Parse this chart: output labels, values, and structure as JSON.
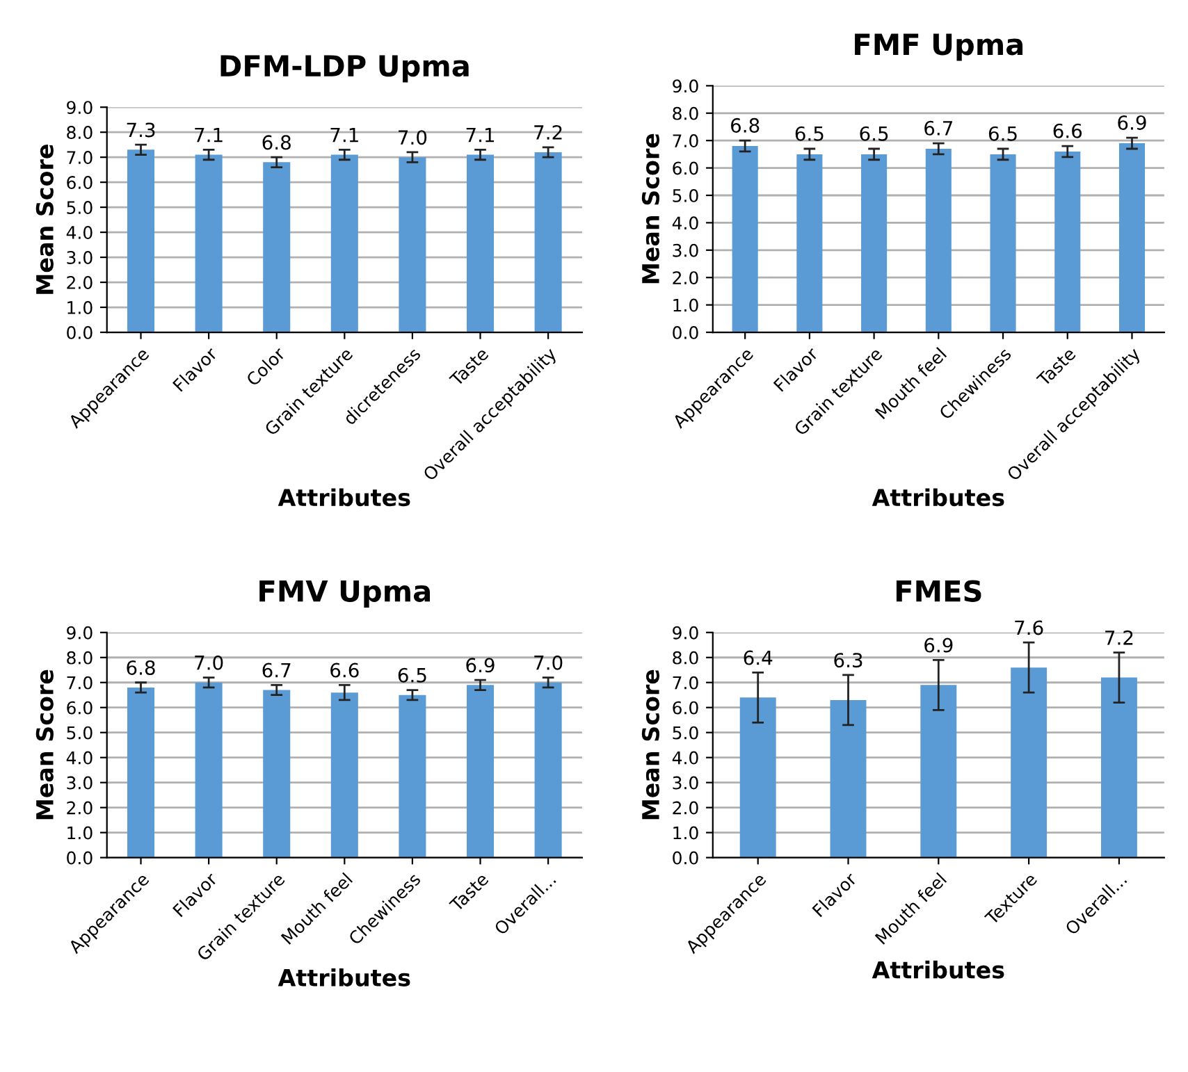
{
  "chart_data": [
    {
      "type": "bar",
      "title": "DFM-LDP Upma",
      "xlabel": "Attributes",
      "ylabel": "Mean Score",
      "categories": [
        "Appearance",
        "Flavor",
        "Color",
        "Grain texture",
        "dicreteness",
        "Taste",
        "Overall acceptability"
      ],
      "values": [
        7.3,
        7.1,
        6.8,
        7.1,
        7.0,
        7.1,
        7.2
      ],
      "errors": [
        0.2,
        0.2,
        0.2,
        0.2,
        0.2,
        0.2,
        0.2
      ],
      "color": "#5b9bd5",
      "value_labels": [
        "7.3",
        "7.1",
        "6.8",
        "7.1",
        "7.0",
        "7.1",
        "7.2"
      ],
      "ylim": [
        0,
        9
      ],
      "yticks": [
        {
          "value": 0,
          "label": "0.0"
        },
        {
          "value": 1,
          "label": "1.0"
        },
        {
          "value": 2,
          "label": "2.0"
        },
        {
          "value": 3,
          "label": "3.0"
        },
        {
          "value": 4,
          "label": "4.0"
        },
        {
          "value": 5,
          "label": "5.0"
        },
        {
          "value": 6,
          "label": "6.0"
        },
        {
          "value": 7,
          "label": "7.0"
        },
        {
          "value": 8,
          "label": "8.0"
        },
        {
          "value": 9,
          "label": "9.0"
        }
      ],
      "grid": "y"
    },
    {
      "type": "bar",
      "title": "FMF Upma",
      "xlabel": "Attributes",
      "ylabel": "Mean Score",
      "categories": [
        "Appearance",
        "Flavor",
        "Grain texture",
        "Mouth feel",
        "Chewiness",
        "Taste",
        "Overall acceptability"
      ],
      "values": [
        6.8,
        6.5,
        6.5,
        6.7,
        6.5,
        6.6,
        6.9
      ],
      "errors": [
        0.2,
        0.2,
        0.2,
        0.2,
        0.2,
        0.2,
        0.2
      ],
      "color": "#5b9bd5",
      "data_labels": true,
      "ylim": [
        0,
        9
      ],
      "yticks": [
        {
          "value": 0,
          "label": "0.0"
        },
        {
          "value": 1,
          "label": "1.0"
        },
        {
          "value": 2,
          "label": "2.0"
        },
        {
          "value": 3,
          "label": "3.0"
        },
        {
          "value": 4,
          "label": "4.0"
        },
        {
          "value": 5,
          "label": "5.0"
        },
        {
          "value": 6,
          "label": "6.0"
        },
        {
          "value": 7,
          "label": "7.0"
        },
        {
          "value": 8,
          "label": "8.0"
        },
        {
          "value": 9,
          "label": "9.0"
        }
      ],
      "grid": "y"
    },
    {
      "type": "bar",
      "title": "FMV Upma",
      "xlabel": "Attributes",
      "ylabel": "Mean Score",
      "categories": [
        "Appearance",
        "Flavor",
        "Grain texture",
        "Mouth feel",
        "Chewiness",
        "Taste",
        "Overall..."
      ],
      "values": [
        6.8,
        7.0,
        6.7,
        6.6,
        6.5,
        6.9,
        7.0
      ],
      "errors": [
        0.2,
        0.2,
        0.2,
        0.3,
        0.2,
        0.2,
        0.2
      ],
      "color": "#5b9bd5",
      "value_labels": [
        "6.8",
        "7.0",
        "6.7",
        "6.6",
        "6.5",
        "6.9",
        "7.0"
      ],
      "ylim": [
        0,
        9
      ],
      "yticks": [
        {
          "value": 0,
          "label": "0.0"
        },
        {
          "value": 1,
          "label": "1.0"
        },
        {
          "value": 2,
          "label": "2.0"
        },
        {
          "value": 3,
          "label": "3.0"
        },
        {
          "value": 4,
          "label": "4.0"
        },
        {
          "value": 5,
          "label": "5.0"
        },
        {
          "value": 6,
          "label": "6.0"
        },
        {
          "value": 7,
          "label": "7.0"
        },
        {
          "value": 8,
          "label": "8.0"
        },
        {
          "value": 9,
          "label": "9.0"
        }
      ],
      "grid": "y"
    },
    {
      "type": "bar",
      "title": "FMES",
      "xlabel": "Attributes",
      "ylabel": "Mean Score",
      "categories": [
        "Appearance",
        "Flavor",
        "Mouth feel",
        "Texture",
        "Overall..."
      ],
      "values": [
        6.4,
        6.3,
        6.9,
        7.6,
        7.2
      ],
      "errors": [
        1.0,
        1.0,
        1.0,
        1.0,
        1.0
      ],
      "color": "#5b9bd5",
      "data_labels": true,
      "ylim": [
        0,
        9
      ],
      "yticks": [
        {
          "value": 0,
          "label": "0.0"
        },
        {
          "value": 1,
          "label": "1.0"
        },
        {
          "value": 2,
          "label": "2.0"
        },
        {
          "value": 3,
          "label": "3.0"
        },
        {
          "value": 4,
          "label": "4.0"
        },
        {
          "value": 5,
          "label": "5.0"
        },
        {
          "value": 6,
          "label": "6.0"
        },
        {
          "value": 7,
          "label": "7.0"
        },
        {
          "value": 8,
          "label": "8.0"
        },
        {
          "value": 9,
          "label": "9.0"
        }
      ],
      "grid": "y"
    }
  ]
}
